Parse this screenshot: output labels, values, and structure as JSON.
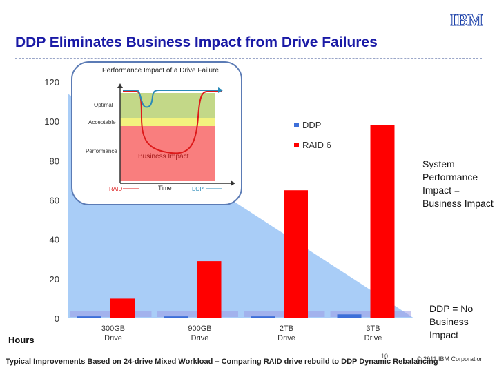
{
  "header": {
    "title": "DDP Eliminates Business Impact from Drive Failures",
    "logo_text": "IBM"
  },
  "annotations": {
    "right_note": "System Performance Impact = Business Impact",
    "ddp_note": "DDP = No Business Impact",
    "hours_label": "Hours"
  },
  "footer": {
    "note": "Typical Improvements Based on 24-drive Mixed Workload – Comparing RAID drive rebuild to DDP Dynamic Rebalancing",
    "page": "10",
    "copyright": "© 2011 IBM Corporation"
  },
  "inset": {
    "title": "Performance Impact of a Drive Failure",
    "optimal": "Optimal",
    "acceptable": "Acceptable",
    "performance": "Performance",
    "business_impact": "Business Impact",
    "time": "Time",
    "raid": "RAID",
    "ddp": "DDP"
  },
  "colors": {
    "ddp": "#3d6fd9",
    "raid": "#ff0000",
    "title": "#1a1aa6",
    "background_wedge": "#a9cdf7"
  },
  "chart_data": {
    "type": "bar",
    "categories": [
      "300GB\nDrive",
      "900GB\nDrive",
      "2TB\nDrive",
      "3TB\nDrive"
    ],
    "series": [
      {
        "name": "DDP",
        "values": [
          1,
          1,
          1,
          2
        ]
      },
      {
        "name": "RAID 6",
        "values": [
          10,
          29,
          65,
          98
        ]
      }
    ],
    "ylim": [
      0,
      120
    ],
    "yticks": [
      0,
      20,
      40,
      60,
      80,
      100,
      120
    ],
    "grid": false,
    "legend": "right"
  }
}
